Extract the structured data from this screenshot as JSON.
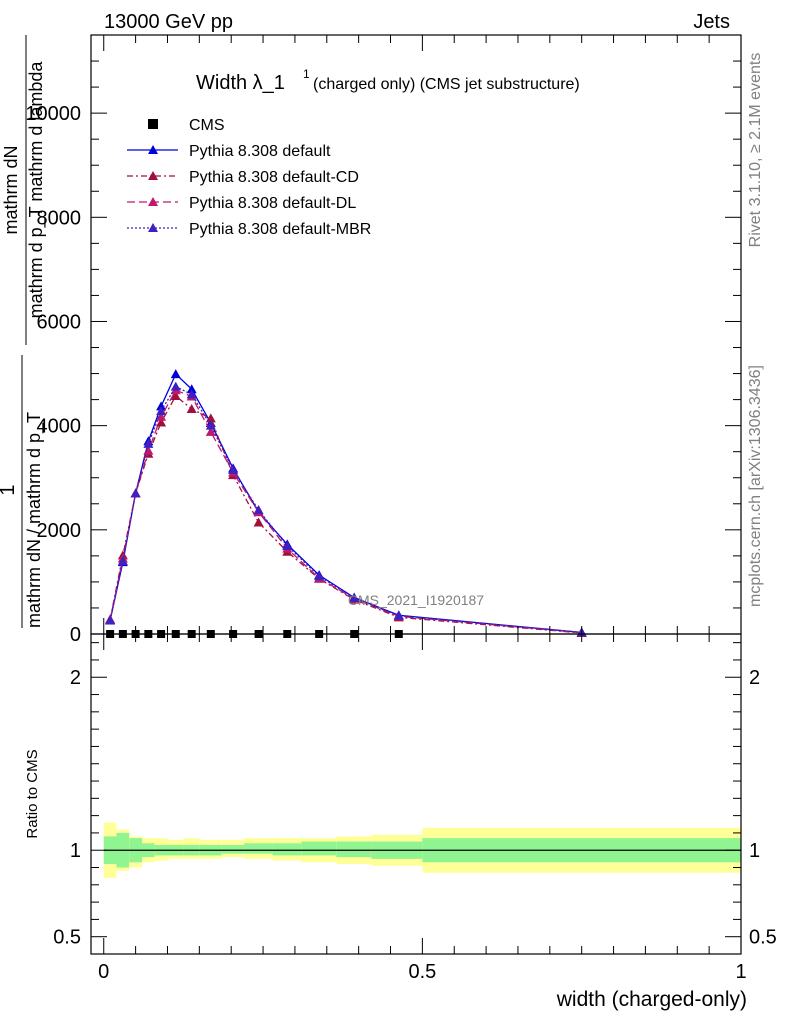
{
  "header": {
    "left": "13000 GeV pp",
    "right": "Jets"
  },
  "side_labels": {
    "rivet": "Rivet 3.1.10, ≥ 2.1M events",
    "mcplots": "mcplots.cern.ch [arXiv:1306.3436]"
  },
  "chart_data": [
    {
      "type": "line",
      "panel": "main",
      "title": "Width λ_1",
      "title_sup": "1",
      "title_suffix": "(charged only) (CMS jet substructure)",
      "watermark": "CMS_2021_I1920187",
      "ylabel_num": "mathrm dN",
      "ylabel_den": "mathrm d p_T mathrm d lambda",
      "ylabel_front": "1",
      "ylabel_front_den": "mathrm dN / mathrm d p_T",
      "xlim": [
        -0.02,
        1.0
      ],
      "ylim": [
        0,
        11500
      ],
      "yticks": [
        {
          "v": 0,
          "label": "0"
        },
        {
          "v": 2000,
          "label": "2000"
        },
        {
          "v": 4000,
          "label": "4000"
        },
        {
          "v": 6000,
          "label": "6000"
        },
        {
          "v": 8000,
          "label": "8000"
        },
        {
          "v": 10000,
          "label": "10000"
        }
      ],
      "legend_position": "top-left",
      "series": [
        {
          "name": "CMS",
          "color": "#000000",
          "marker": "square",
          "x": [
            0.01,
            0.03,
            0.05,
            0.07,
            0.09,
            0.113,
            0.138,
            0.168,
            0.203,
            0.243,
            0.288,
            0.338,
            0.393,
            0.463
          ],
          "y": [
            0,
            0,
            0,
            0,
            0,
            0,
            0,
            0,
            0,
            0,
            0,
            0,
            0,
            0
          ]
        },
        {
          "name": "Pythia 8.308 default",
          "color": "#0000dd",
          "marker": "triangle",
          "dash": "",
          "x": [
            0.01,
            0.03,
            0.05,
            0.07,
            0.09,
            0.113,
            0.138,
            0.168,
            0.203,
            0.243,
            0.288,
            0.338,
            0.393,
            0.463,
            0.75
          ],
          "y": [
            260,
            1380,
            2700,
            3700,
            4370,
            4990,
            4700,
            4050,
            3180,
            2340,
            1720,
            1130,
            700,
            360,
            30
          ]
        },
        {
          "name": "Pythia 8.308 default-CD",
          "color": "#a0103c",
          "marker": "triangle",
          "dash": "6,3,2,3",
          "x": [
            0.01,
            0.03,
            0.05,
            0.07,
            0.09,
            0.113,
            0.138,
            0.168,
            0.203,
            0.243,
            0.288,
            0.338,
            0.393,
            0.463,
            0.75
          ],
          "y": [
            280,
            1510,
            2700,
            3460,
            4060,
            4570,
            4320,
            4140,
            3050,
            2140,
            1580,
            1060,
            660,
            320,
            20
          ]
        },
        {
          "name": "Pythia 8.308 default-DL",
          "color": "#c0186c",
          "marker": "triangle",
          "dash": "8,4",
          "x": [
            0.01,
            0.03,
            0.05,
            0.07,
            0.09,
            0.113,
            0.138,
            0.168,
            0.203,
            0.243,
            0.288,
            0.338,
            0.393,
            0.463,
            0.75
          ],
          "y": [
            270,
            1450,
            2700,
            3520,
            4170,
            4680,
            4560,
            3880,
            3100,
            2340,
            1640,
            1070,
            680,
            340,
            25
          ]
        },
        {
          "name": "Pythia 8.308 default-MBR",
          "color": "#4020c0",
          "marker": "triangle",
          "dash": "2,2",
          "x": [
            0.01,
            0.03,
            0.05,
            0.07,
            0.09,
            0.113,
            0.138,
            0.168,
            0.203,
            0.243,
            0.288,
            0.338,
            0.393,
            0.463,
            0.75
          ],
          "y": [
            265,
            1400,
            2700,
            3650,
            4280,
            4750,
            4600,
            4000,
            3150,
            2380,
            1690,
            1110,
            690,
            350,
            28
          ]
        }
      ]
    },
    {
      "type": "area",
      "panel": "ratio",
      "ylabel": "Ratio to CMS",
      "xlabel": "width (charged-only)",
      "xlim": [
        -0.02,
        1.0
      ],
      "ylim": [
        0.4,
        2.25
      ],
      "yticks": [
        {
          "v": 0.5,
          "label": "0.5"
        },
        {
          "v": 1,
          "label": "1"
        },
        {
          "v": 2,
          "label": "2"
        }
      ],
      "xticks": [
        {
          "v": 0,
          "label": "0"
        },
        {
          "v": 0.5,
          "label": "0.5"
        },
        {
          "v": 1,
          "label": "1"
        }
      ],
      "band_edges": [
        0,
        0.02,
        0.04,
        0.06,
        0.08,
        0.1,
        0.125,
        0.15,
        0.185,
        0.22,
        0.265,
        0.31,
        0.365,
        0.42,
        0.5,
        1.0
      ],
      "inner_band": {
        "color": "#90f490",
        "low": [
          0.92,
          0.9,
          0.93,
          0.96,
          0.97,
          0.97,
          0.97,
          0.97,
          0.98,
          0.98,
          0.97,
          0.97,
          0.96,
          0.95,
          0.93
        ],
        "high": [
          1.08,
          1.1,
          1.07,
          1.04,
          1.03,
          1.03,
          1.03,
          1.03,
          1.03,
          1.04,
          1.04,
          1.05,
          1.05,
          1.05,
          1.07
        ]
      },
      "outer_band": {
        "color": "#ffff99",
        "low": [
          0.84,
          0.88,
          0.9,
          0.93,
          0.94,
          0.95,
          0.95,
          0.95,
          0.96,
          0.95,
          0.94,
          0.93,
          0.92,
          0.91,
          0.87
        ],
        "high": [
          1.16,
          1.12,
          1.08,
          1.07,
          1.07,
          1.06,
          1.07,
          1.06,
          1.06,
          1.07,
          1.07,
          1.07,
          1.08,
          1.09,
          1.13
        ]
      },
      "reference": 1.0
    }
  ]
}
